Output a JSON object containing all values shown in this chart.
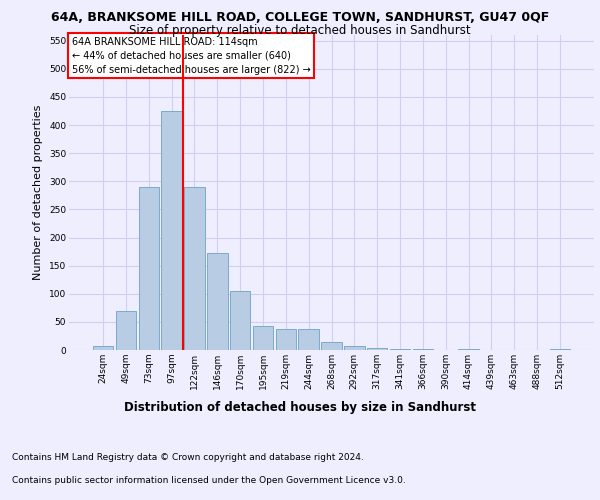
{
  "title1": "64A, BRANKSOME HILL ROAD, COLLEGE TOWN, SANDHURST, GU47 0QF",
  "title2": "Size of property relative to detached houses in Sandhurst",
  "xlabel": "Distribution of detached houses by size in Sandhurst",
  "ylabel": "Number of detached properties",
  "footer1": "Contains HM Land Registry data © Crown copyright and database right 2024.",
  "footer2": "Contains public sector information licensed under the Open Government Licence v3.0.",
  "categories": [
    "24sqm",
    "49sqm",
    "73sqm",
    "97sqm",
    "122sqm",
    "146sqm",
    "170sqm",
    "195sqm",
    "219sqm",
    "244sqm",
    "268sqm",
    "292sqm",
    "317sqm",
    "341sqm",
    "366sqm",
    "390sqm",
    "414sqm",
    "439sqm",
    "463sqm",
    "488sqm",
    "512sqm"
  ],
  "values": [
    7,
    70,
    290,
    425,
    290,
    172,
    105,
    43,
    38,
    37,
    15,
    7,
    3,
    2,
    1,
    0,
    2,
    0,
    0,
    0,
    2
  ],
  "bar_color": "#b8cce4",
  "bar_edge_color": "#7aaacc",
  "grid_color": "#d0d0ee",
  "annotation_text": "64A BRANKSOME HILL ROAD: 114sqm\n← 44% of detached houses are smaller (640)\n56% of semi-detached houses are larger (822) →",
  "annotation_box_color": "white",
  "annotation_box_edge_color": "red",
  "vline_color": "red",
  "vline_position": 3.5,
  "ylim": [
    0,
    560
  ],
  "yticks": [
    0,
    50,
    100,
    150,
    200,
    250,
    300,
    350,
    400,
    450,
    500,
    550
  ],
  "background_color": "#eeeeff",
  "title1_fontsize": 9,
  "title2_fontsize": 8.5,
  "xlabel_fontsize": 8.5,
  "ylabel_fontsize": 8,
  "tick_fontsize": 6.5,
  "annotation_fontsize": 7,
  "footer_fontsize": 6.5
}
